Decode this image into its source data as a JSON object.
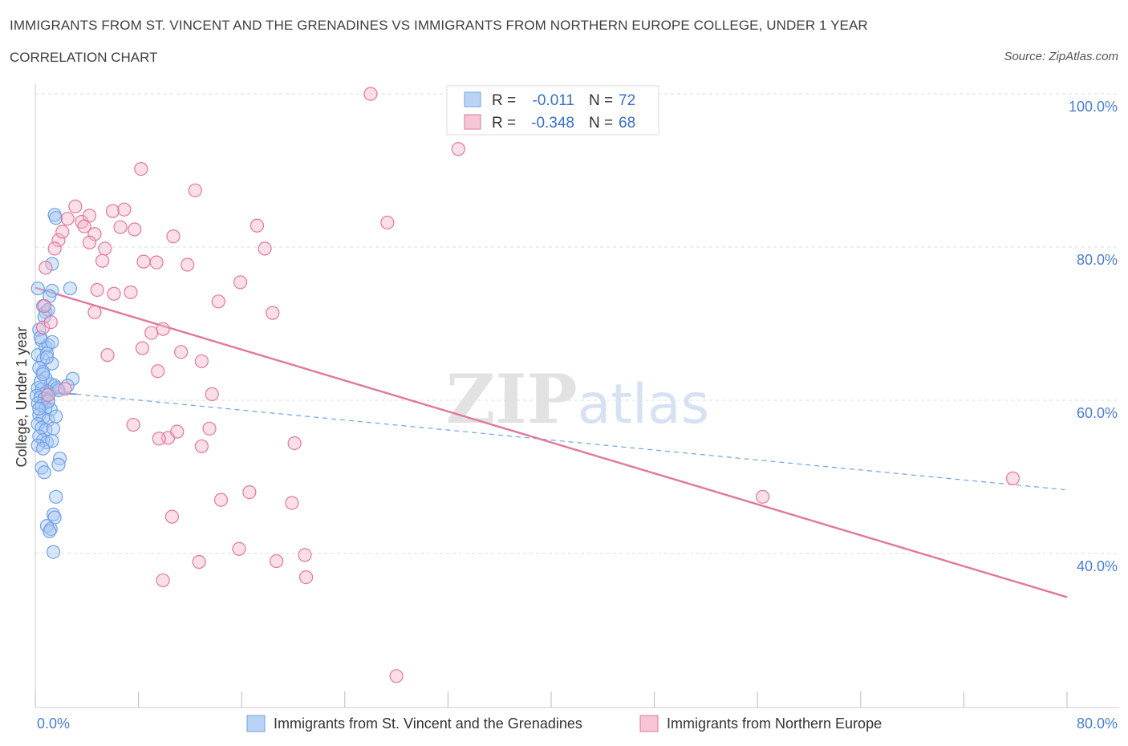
{
  "header": {
    "title": "IMMIGRANTS FROM ST. VINCENT AND THE GRENADINES VS IMMIGRANTS FROM NORTHERN EUROPE COLLEGE, UNDER 1 YEAR",
    "subtitle": "CORRELATION CHART",
    "source": "Source: ZipAtlas.com"
  },
  "watermark": "ZIPatlas",
  "chart_data": {
    "type": "scatter",
    "xlabel": "",
    "ylabel": "College, Under 1 year",
    "xlim": [
      0,
      80
    ],
    "ylim": [
      20,
      100
    ],
    "x_tick_labels": [
      {
        "value": 0,
        "label": "0.0%"
      },
      {
        "value": 80,
        "label": "80.0%"
      }
    ],
    "y_tick_labels": [
      {
        "value": 100,
        "label": "100.0%"
      },
      {
        "value": 80,
        "label": "80.0%"
      },
      {
        "value": 60,
        "label": "60.0%"
      },
      {
        "value": 40,
        "label": "40.0%"
      }
    ],
    "stats": [
      {
        "r_label": "R =",
        "r": "-0.011",
        "n_label": "N =",
        "n": "72"
      },
      {
        "r_label": "R =",
        "r": "-0.348",
        "n_label": "N =",
        "n": "68"
      }
    ],
    "series": [
      {
        "name": "Immigrants from St. Vincent and the Grenadines",
        "color": "#6fa1e8",
        "fill": "#a9c8f2",
        "trend": {
          "x0": 0,
          "y0": 61.1,
          "x1": 3.2,
          "y1": 60.8,
          "solid": true,
          "dash_to_x": 80,
          "dash_to_y": 48.3
        },
        "points": [
          [
            0.2,
            74.6
          ],
          [
            0.6,
            72.3
          ],
          [
            0.8,
            71.5
          ],
          [
            1.0,
            71.8
          ],
          [
            1.3,
            74.3
          ],
          [
            0.3,
            69.2
          ],
          [
            0.5,
            67.8
          ],
          [
            0.8,
            66.9
          ],
          [
            1.0,
            67.2
          ],
          [
            1.3,
            67.6
          ],
          [
            0.2,
            65.9
          ],
          [
            0.6,
            65.3
          ],
          [
            0.9,
            66.1
          ],
          [
            1.3,
            64.8
          ],
          [
            0.3,
            64.2
          ],
          [
            0.6,
            63.7
          ],
          [
            0.8,
            62.9
          ],
          [
            1.2,
            62.1
          ],
          [
            0.2,
            61.6
          ],
          [
            0.5,
            61.4
          ],
          [
            0.9,
            61.2
          ],
          [
            1.1,
            61.0
          ],
          [
            1.5,
            61.9
          ],
          [
            0.1,
            60.6
          ],
          [
            0.4,
            60.4
          ],
          [
            0.7,
            60.2
          ],
          [
            1.0,
            60.0
          ],
          [
            0.2,
            59.6
          ],
          [
            0.5,
            59.3
          ],
          [
            0.8,
            59.0
          ],
          [
            1.2,
            58.8
          ],
          [
            0.3,
            58.1
          ],
          [
            0.6,
            57.7
          ],
          [
            1.0,
            57.4
          ],
          [
            1.6,
            57.9
          ],
          [
            0.2,
            56.9
          ],
          [
            0.5,
            56.4
          ],
          [
            0.8,
            56.1
          ],
          [
            1.4,
            56.3
          ],
          [
            0.3,
            55.3
          ],
          [
            0.6,
            54.8
          ],
          [
            0.9,
            54.5
          ],
          [
            1.3,
            54.7
          ],
          [
            0.2,
            54.1
          ],
          [
            0.6,
            53.7
          ],
          [
            1.9,
            52.4
          ],
          [
            1.8,
            51.6
          ],
          [
            0.5,
            51.2
          ],
          [
            0.7,
            50.6
          ],
          [
            1.6,
            47.4
          ],
          [
            1.4,
            45.1
          ],
          [
            1.5,
            44.7
          ],
          [
            0.9,
            43.6
          ],
          [
            1.2,
            43.2
          ],
          [
            1.1,
            42.9
          ],
          [
            1.4,
            40.2
          ],
          [
            1.5,
            84.2
          ],
          [
            1.6,
            83.8
          ],
          [
            1.3,
            77.8
          ],
          [
            2.7,
            74.6
          ],
          [
            2.9,
            62.8
          ],
          [
            2.5,
            61.9
          ],
          [
            1.7,
            61.6
          ],
          [
            0.4,
            68.2
          ],
          [
            0.7,
            70.9
          ],
          [
            1.1,
            73.6
          ],
          [
            0.4,
            62.4
          ],
          [
            1.0,
            59.8
          ],
          [
            1.8,
            61.3
          ],
          [
            0.3,
            58.9
          ],
          [
            0.6,
            63.4
          ],
          [
            0.9,
            65.6
          ]
        ]
      },
      {
        "name": "Immigrants from Northern Europe",
        "color": "#e2779a",
        "fill": "#f4b8cc",
        "trend": {
          "x0": 0,
          "y0": 74.7,
          "x1": 80,
          "y1": 34.3,
          "solid": true
        },
        "points": [
          [
            26.0,
            100.0
          ],
          [
            32.8,
            92.8
          ],
          [
            8.2,
            90.2
          ],
          [
            12.4,
            87.4
          ],
          [
            3.1,
            85.3
          ],
          [
            6.0,
            84.7
          ],
          [
            2.5,
            83.7
          ],
          [
            3.6,
            83.3
          ],
          [
            4.2,
            84.1
          ],
          [
            17.2,
            82.8
          ],
          [
            27.3,
            83.2
          ],
          [
            6.6,
            82.6
          ],
          [
            7.7,
            82.3
          ],
          [
            10.7,
            81.4
          ],
          [
            4.6,
            81.7
          ],
          [
            1.8,
            80.9
          ],
          [
            4.2,
            80.6
          ],
          [
            1.5,
            79.8
          ],
          [
            5.4,
            79.8
          ],
          [
            17.8,
            79.8
          ],
          [
            5.2,
            78.2
          ],
          [
            8.4,
            78.1
          ],
          [
            11.8,
            77.7
          ],
          [
            0.8,
            77.3
          ],
          [
            4.8,
            74.4
          ],
          [
            6.1,
            73.9
          ],
          [
            14.2,
            72.9
          ],
          [
            15.9,
            75.4
          ],
          [
            0.7,
            72.3
          ],
          [
            4.6,
            71.5
          ],
          [
            18.4,
            71.4
          ],
          [
            9.0,
            68.8
          ],
          [
            9.9,
            69.3
          ],
          [
            0.6,
            69.5
          ],
          [
            5.6,
            65.9
          ],
          [
            8.3,
            66.8
          ],
          [
            11.3,
            66.3
          ],
          [
            12.9,
            65.1
          ],
          [
            9.5,
            63.8
          ],
          [
            1.0,
            60.7
          ],
          [
            7.6,
            56.8
          ],
          [
            13.5,
            56.3
          ],
          [
            10.3,
            55.1
          ],
          [
            9.6,
            55.0
          ],
          [
            11.0,
            55.9
          ],
          [
            12.9,
            54.0
          ],
          [
            20.1,
            54.4
          ],
          [
            56.4,
            47.4
          ],
          [
            75.8,
            49.8
          ],
          [
            14.4,
            47.0
          ],
          [
            16.6,
            48.0
          ],
          [
            19.9,
            46.6
          ],
          [
            10.6,
            44.8
          ],
          [
            15.8,
            40.6
          ],
          [
            18.7,
            39.0
          ],
          [
            20.9,
            39.8
          ],
          [
            12.7,
            38.9
          ],
          [
            21.0,
            36.9
          ],
          [
            9.9,
            36.5
          ],
          [
            28.0,
            24.0
          ],
          [
            2.1,
            82.0
          ],
          [
            3.8,
            82.7
          ],
          [
            6.9,
            84.9
          ],
          [
            9.4,
            78.0
          ],
          [
            1.2,
            70.2
          ],
          [
            2.3,
            61.5
          ],
          [
            13.7,
            60.8
          ],
          [
            7.4,
            74.1
          ]
        ]
      }
    ]
  },
  "legend": {
    "items": [
      "Immigrants from St. Vincent and the Grenadines",
      "Immigrants from Northern Europe"
    ]
  }
}
